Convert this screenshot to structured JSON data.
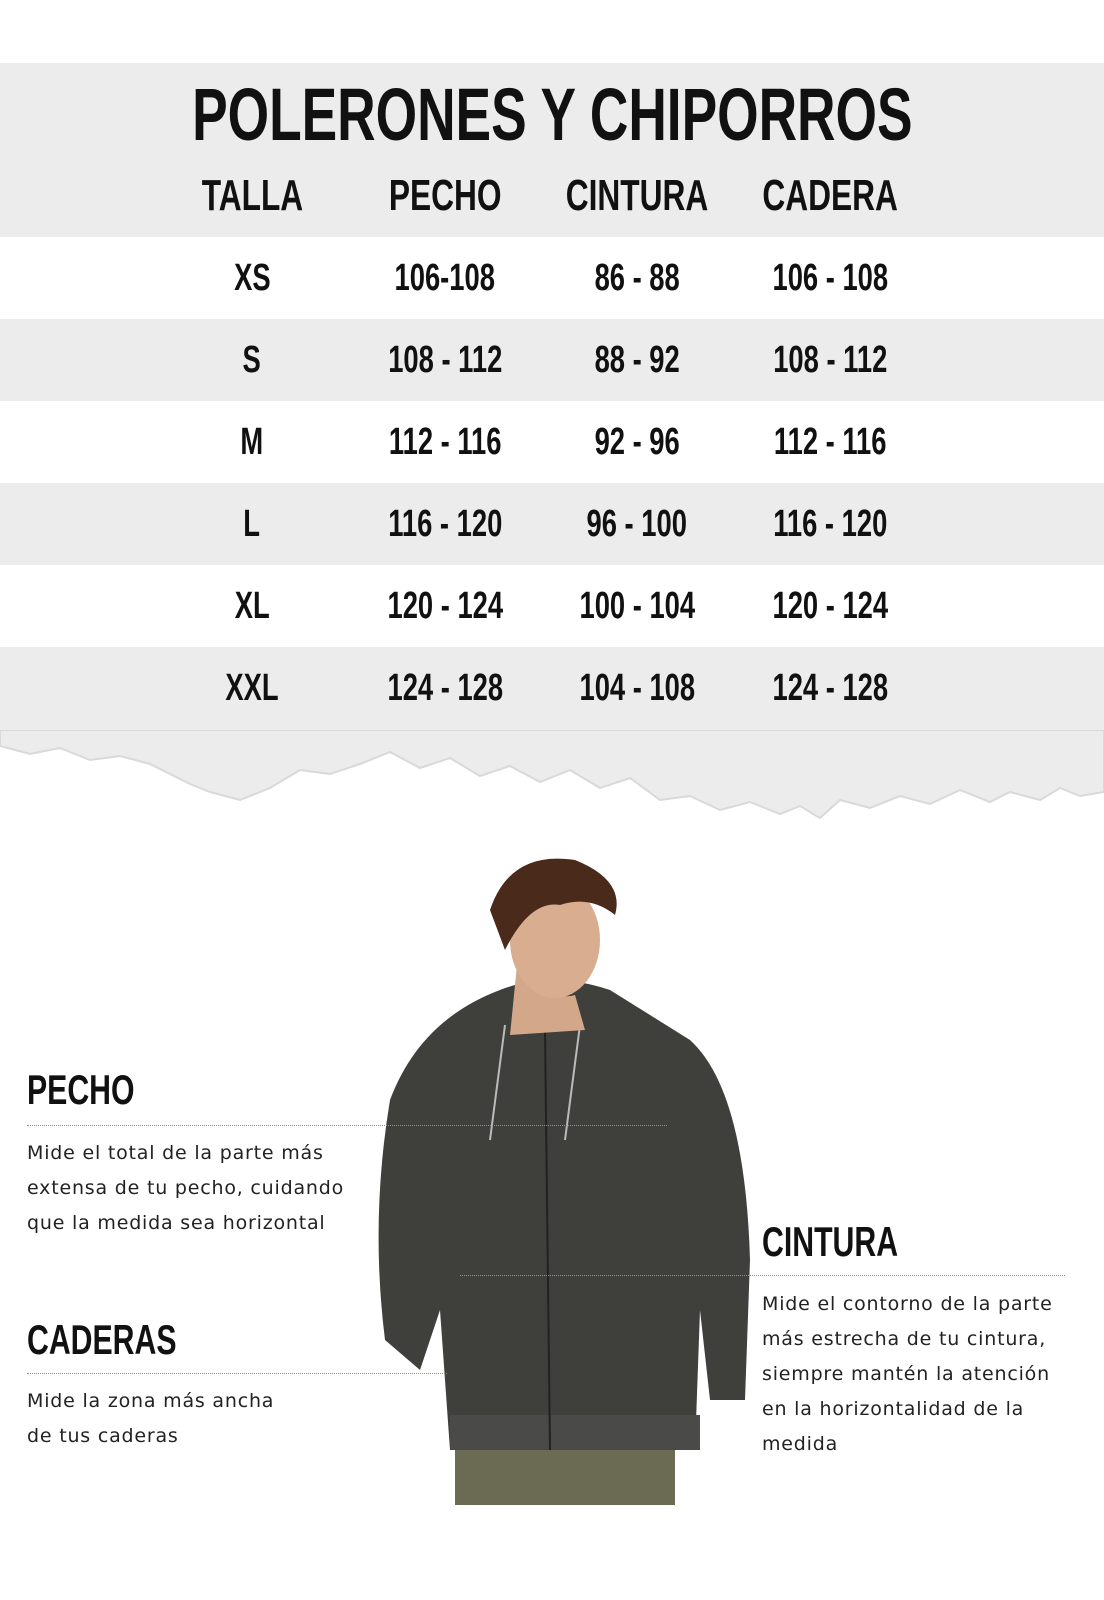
{
  "title": "POLERONES Y CHIPORROS",
  "table": {
    "headers": [
      "TALLA",
      "PECHO",
      "CINTURA",
      "CADERA"
    ],
    "rows": [
      [
        "XS",
        "106-108",
        "86 - 88",
        "106 - 108"
      ],
      [
        "S",
        "108 - 112",
        "88 - 92",
        "108 - 112"
      ],
      [
        "M",
        "112 - 116",
        "92 - 96",
        "112 - 116"
      ],
      [
        "L",
        "116 - 120",
        "96 - 100",
        "116 - 120"
      ],
      [
        "XL",
        "120 - 124",
        "100 - 104",
        "120 - 124"
      ],
      [
        "XXL",
        "124 - 128",
        "104 - 108",
        "124 - 128"
      ]
    ]
  },
  "guide": {
    "pecho": {
      "title": "PECHO",
      "text": "Mide el total de la parte más\nextensa de tu pecho, cuidando\nque la medida sea horizontal"
    },
    "caderas": {
      "title": "CADERAS",
      "text": "Mide la zona más ancha\nde tus caderas"
    },
    "cintura": {
      "title": "CINTURA",
      "text": "Mide el contorno de la parte\nmás estrecha de tu cintura,\nsiempre mantén la atención\nen  la horizontalidad de la\nmedida"
    }
  },
  "colors": {
    "band": "#ececec",
    "dotted_line": "#c47a7a",
    "jacket": "#3f3f3c"
  }
}
